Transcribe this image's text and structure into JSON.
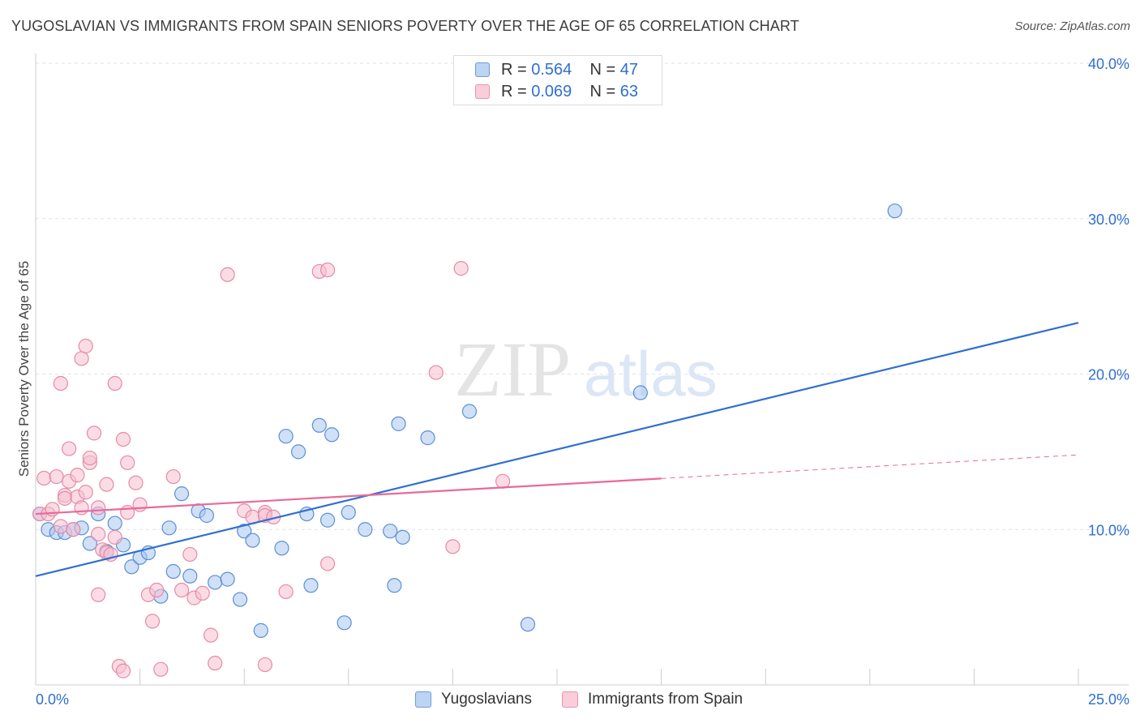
{
  "title": "YUGOSLAVIAN VS IMMIGRANTS FROM SPAIN SENIORS POVERTY OVER THE AGE OF 65 CORRELATION CHART",
  "source": "Source: ZipAtlas.com",
  "watermark": {
    "zip": "ZIP",
    "atlas": "atlas"
  },
  "legend_top": [
    {
      "r_label": "R = ",
      "r_value": "0.564",
      "n_label": "N = ",
      "n_value": "47"
    },
    {
      "r_label": "R = ",
      "r_value": "0.069",
      "n_label": "N = ",
      "n_value": "63"
    }
  ],
  "chart_data": {
    "type": "scatter",
    "title": "YUGOSLAVIAN VS IMMIGRANTS FROM SPAIN SENIORS POVERTY OVER THE AGE OF 65 CORRELATION CHART",
    "xlabel": "",
    "ylabel": "Seniors Poverty Over the Age of 65",
    "xlim": [
      0,
      25
    ],
    "ylim": [
      0,
      40
    ],
    "x_tick_labels": [
      "0.0%",
      "25.0%"
    ],
    "y_ticks": [
      10,
      20,
      30,
      40
    ],
    "y_tick_labels": [
      "10.0%",
      "20.0%",
      "30.0%",
      "40.0%"
    ],
    "grid": true,
    "legend_position": "bottom",
    "series": [
      {
        "name": "Yugoslavians",
        "color": "#a9c7ef",
        "stroke": "#5b8fd6",
        "trend_color": "#2f6fd1",
        "trend": {
          "x": [
            0,
            25
          ],
          "y": [
            7.0,
            23.3
          ]
        },
        "trend_dashed_from": 25,
        "points": [
          [
            0.1,
            11.0
          ],
          [
            0.3,
            10.0
          ],
          [
            0.5,
            9.8
          ],
          [
            0.7,
            9.8
          ],
          [
            0.9,
            10.0
          ],
          [
            1.1,
            10.1
          ],
          [
            1.3,
            9.1
          ],
          [
            1.5,
            11.0
          ],
          [
            1.7,
            8.6
          ],
          [
            1.9,
            10.4
          ],
          [
            2.1,
            9.0
          ],
          [
            2.3,
            7.6
          ],
          [
            2.5,
            8.2
          ],
          [
            2.7,
            8.5
          ],
          [
            3.0,
            5.7
          ],
          [
            3.2,
            10.1
          ],
          [
            3.3,
            7.3
          ],
          [
            3.5,
            12.3
          ],
          [
            3.7,
            7.0
          ],
          [
            3.9,
            11.2
          ],
          [
            4.1,
            10.9
          ],
          [
            4.3,
            6.6
          ],
          [
            4.6,
            6.8
          ],
          [
            4.9,
            5.5
          ],
          [
            5.0,
            9.9
          ],
          [
            5.2,
            9.3
          ],
          [
            5.4,
            3.5
          ],
          [
            5.9,
            8.8
          ],
          [
            6.0,
            16.0
          ],
          [
            6.3,
            15.0
          ],
          [
            6.5,
            11.0
          ],
          [
            6.6,
            6.4
          ],
          [
            6.8,
            16.7
          ],
          [
            7.0,
            10.6
          ],
          [
            7.1,
            16.1
          ],
          [
            7.4,
            4.0
          ],
          [
            7.5,
            11.1
          ],
          [
            7.9,
            10.0
          ],
          [
            8.5,
            9.9
          ],
          [
            8.6,
            6.4
          ],
          [
            8.7,
            16.8
          ],
          [
            8.8,
            9.5
          ],
          [
            9.4,
            15.9
          ],
          [
            10.4,
            17.6
          ],
          [
            11.8,
            3.9
          ],
          [
            14.5,
            18.8
          ],
          [
            20.6,
            30.5
          ]
        ]
      },
      {
        "name": "Immigrants from Spain",
        "color": "#f7bfd0",
        "stroke": "#e68aa8",
        "trend_color": "#e8699a",
        "trend": {
          "x": [
            0,
            25
          ],
          "y": [
            11.0,
            14.8
          ]
        },
        "trend_dashed_from": 15.0,
        "points": [
          [
            0.1,
            11.0
          ],
          [
            0.2,
            13.3
          ],
          [
            0.3,
            11.0
          ],
          [
            0.4,
            11.3
          ],
          [
            0.5,
            13.4
          ],
          [
            0.6,
            19.4
          ],
          [
            0.6,
            10.2
          ],
          [
            0.7,
            12.2
          ],
          [
            0.7,
            12.0
          ],
          [
            0.8,
            15.2
          ],
          [
            0.8,
            13.1
          ],
          [
            0.9,
            10.0
          ],
          [
            1.0,
            13.5
          ],
          [
            1.0,
            12.1
          ],
          [
            1.1,
            11.4
          ],
          [
            1.2,
            12.4
          ],
          [
            1.1,
            21.0
          ],
          [
            1.2,
            21.8
          ],
          [
            1.3,
            14.3
          ],
          [
            1.3,
            14.6
          ],
          [
            1.4,
            16.2
          ],
          [
            1.5,
            9.7
          ],
          [
            1.5,
            11.4
          ],
          [
            1.5,
            5.8
          ],
          [
            1.6,
            8.7
          ],
          [
            1.7,
            8.5
          ],
          [
            1.7,
            12.9
          ],
          [
            1.8,
            8.4
          ],
          [
            1.9,
            19.4
          ],
          [
            1.9,
            9.5
          ],
          [
            2.0,
            1.2
          ],
          [
            2.1,
            15.8
          ],
          [
            2.1,
            0.9
          ],
          [
            2.2,
            14.3
          ],
          [
            2.2,
            11.1
          ],
          [
            2.4,
            13.0
          ],
          [
            2.5,
            11.6
          ],
          [
            2.7,
            5.8
          ],
          [
            2.8,
            4.1
          ],
          [
            2.9,
            6.1
          ],
          [
            3.0,
            1.0
          ],
          [
            3.3,
            13.4
          ],
          [
            3.5,
            6.1
          ],
          [
            3.7,
            8.4
          ],
          [
            3.8,
            5.6
          ],
          [
            4.0,
            5.9
          ],
          [
            4.2,
            3.2
          ],
          [
            4.3,
            1.4
          ],
          [
            4.6,
            26.4
          ],
          [
            5.0,
            11.2
          ],
          [
            5.2,
            10.8
          ],
          [
            5.5,
            11.1
          ],
          [
            5.5,
            1.3
          ],
          [
            5.5,
            10.9
          ],
          [
            5.7,
            10.8
          ],
          [
            6.0,
            6.0
          ],
          [
            6.8,
            26.6
          ],
          [
            7.0,
            26.7
          ],
          [
            7.0,
            7.8
          ],
          [
            9.6,
            20.1
          ],
          [
            10.0,
            8.9
          ],
          [
            10.2,
            26.8
          ],
          [
            11.2,
            13.1
          ]
        ]
      }
    ]
  }
}
